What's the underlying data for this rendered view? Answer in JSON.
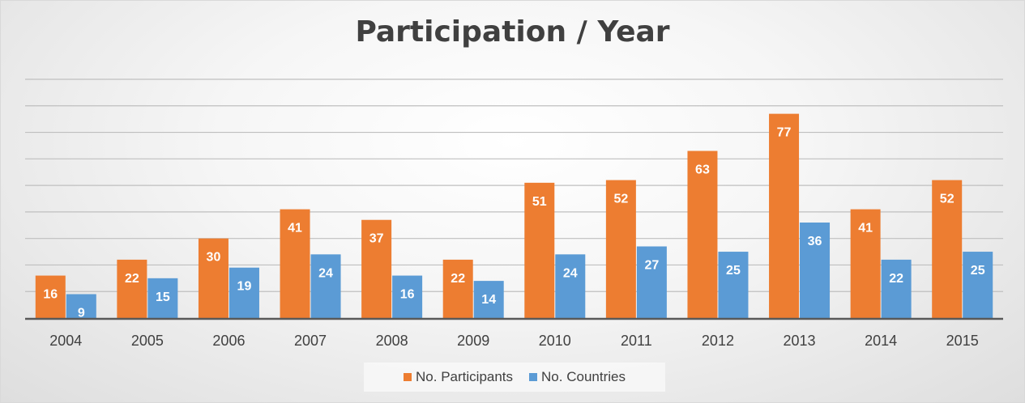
{
  "chart_data": {
    "type": "bar",
    "title": "Participation / Year",
    "categories": [
      "2004",
      "2005",
      "2006",
      "2007",
      "2008",
      "2009",
      "2010",
      "2011",
      "2012",
      "2013",
      "2014",
      "2015"
    ],
    "series": [
      {
        "name": "No. Participants",
        "color": "#ED7D31",
        "values": [
          16,
          22,
          30,
          41,
          37,
          22,
          51,
          52,
          63,
          77,
          41,
          52
        ]
      },
      {
        "name": "No. Countries",
        "color": "#5B9BD5",
        "values": [
          9,
          15,
          19,
          24,
          16,
          14,
          24,
          27,
          25,
          36,
          22,
          25
        ]
      }
    ],
    "ylim": [
      0,
      90
    ],
    "grid": true,
    "legend_position": "bottom",
    "data_labels": true
  }
}
